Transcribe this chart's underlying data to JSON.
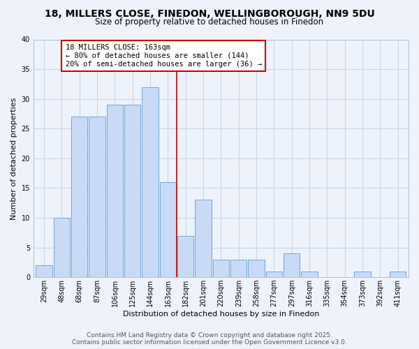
{
  "title": "18, MILLERS CLOSE, FINEDON, WELLINGBOROUGH, NN9 5DU",
  "subtitle": "Size of property relative to detached houses in Finedon",
  "xlabel": "Distribution of detached houses by size in Finedon",
  "ylabel": "Number of detached properties",
  "bar_labels": [
    "29sqm",
    "48sqm",
    "68sqm",
    "87sqm",
    "106sqm",
    "125sqm",
    "144sqm",
    "163sqm",
    "182sqm",
    "201sqm",
    "220sqm",
    "239sqm",
    "258sqm",
    "277sqm",
    "297sqm",
    "316sqm",
    "335sqm",
    "354sqm",
    "373sqm",
    "392sqm",
    "411sqm"
  ],
  "bar_values": [
    2,
    10,
    27,
    27,
    29,
    29,
    32,
    16,
    7,
    13,
    3,
    3,
    3,
    1,
    4,
    1,
    0,
    0,
    1,
    0,
    1
  ],
  "bar_color": "#c8daf5",
  "bar_edge_color": "#6ea6d8",
  "vline_x": 7.5,
  "vline_color": "#cc0000",
  "annotation_title": "18 MILLERS CLOSE: 163sqm",
  "annotation_line1": "← 80% of detached houses are smaller (144)",
  "annotation_line2": "20% of semi-detached houses are larger (36) →",
  "annotation_box_color": "#ffffff",
  "annotation_box_edge": "#cc0000",
  "ylim": [
    0,
    40
  ],
  "yticks": [
    0,
    5,
    10,
    15,
    20,
    25,
    30,
    35,
    40
  ],
  "bg_color": "#eef2fb",
  "grid_color": "#c8d4e8",
  "footer1": "Contains HM Land Registry data © Crown copyright and database right 2025.",
  "footer2": "Contains public sector information licensed under the Open Government Licence v3.0.",
  "title_fontsize": 10,
  "subtitle_fontsize": 8.5,
  "axis_label_fontsize": 8,
  "tick_fontsize": 7,
  "annotation_fontsize": 7.5,
  "footer_fontsize": 6.5
}
